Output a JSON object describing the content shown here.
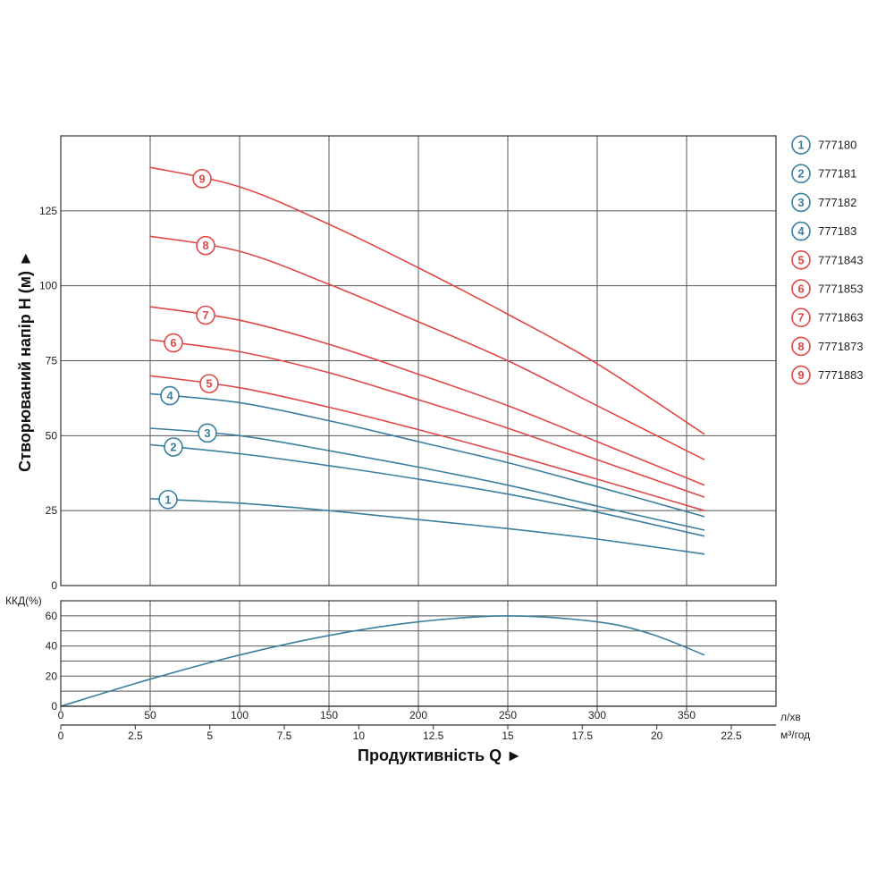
{
  "chart_data": {
    "type": "line",
    "head_chart": {
      "ylabel": "Створюваний напір H (м) ►",
      "ylim": [
        0,
        150
      ],
      "y_ticks": [
        0,
        25,
        50,
        75,
        100,
        125
      ],
      "x_range_lpm": [
        0,
        400
      ],
      "series": [
        {
          "id": "1",
          "name": "777180",
          "color": "#3a7fa0",
          "label_x": 60,
          "x": [
            50,
            100,
            150,
            200,
            250,
            300,
            360
          ],
          "y": [
            29,
            27.5,
            25,
            22,
            19,
            15.5,
            10.5
          ]
        },
        {
          "id": "2",
          "name": "777181",
          "color": "#3a7fa0",
          "label_x": 63,
          "x": [
            50,
            100,
            150,
            200,
            250,
            300,
            360
          ],
          "y": [
            47,
            44,
            40,
            35.5,
            30.5,
            24.5,
            16.5
          ]
        },
        {
          "id": "3",
          "name": "777182",
          "color": "#3a7fa0",
          "label_x": 82,
          "x": [
            50,
            100,
            150,
            200,
            250,
            300,
            360
          ],
          "y": [
            52.5,
            50,
            45,
            39.5,
            33.5,
            26.5,
            18.5
          ]
        },
        {
          "id": "4",
          "name": "777183",
          "color": "#3a7fa0",
          "label_x": 61,
          "x": [
            50,
            100,
            150,
            200,
            250,
            300,
            360
          ],
          "y": [
            64,
            61,
            55,
            48,
            41,
            33,
            23
          ]
        },
        {
          "id": "5",
          "name": "7771843",
          "color": "#e04848",
          "label_x": 83,
          "x": [
            50,
            100,
            150,
            200,
            250,
            300,
            360
          ],
          "y": [
            70,
            66,
            59.5,
            52,
            44,
            35.5,
            25
          ]
        },
        {
          "id": "6",
          "name": "7771853",
          "color": "#e04848",
          "label_x": 63,
          "x": [
            50,
            100,
            150,
            200,
            250,
            300,
            360
          ],
          "y": [
            82,
            78,
            71,
            62,
            52.5,
            42,
            29.5
          ]
        },
        {
          "id": "7",
          "name": "7771863",
          "color": "#e04848",
          "label_x": 81,
          "x": [
            50,
            100,
            150,
            200,
            250,
            300,
            360
          ],
          "y": [
            93,
            88.5,
            80.5,
            70.5,
            60,
            48,
            33.5
          ]
        },
        {
          "id": "8",
          "name": "7771873",
          "color": "#e04848",
          "label_x": 81,
          "x": [
            50,
            100,
            150,
            200,
            250,
            300,
            360
          ],
          "y": [
            116.5,
            111.5,
            100.5,
            88,
            75,
            60,
            42
          ]
        },
        {
          "id": "9",
          "name": "7771883",
          "color": "#e04848",
          "label_x": 79,
          "x": [
            50,
            100,
            150,
            200,
            250,
            300,
            360
          ],
          "y": [
            139.5,
            133,
            120.5,
            106,
            90.5,
            74,
            50.5
          ]
        }
      ]
    },
    "efficiency_chart": {
      "ylabel": "ККД(%)",
      "ylim": [
        0,
        70
      ],
      "y_ticks": [
        0,
        20,
        40,
        60
      ],
      "series": [
        {
          "name": "ККД",
          "color": "#3a7fa0",
          "x": [
            0,
            50,
            100,
            150,
            200,
            250,
            300,
            330,
            360
          ],
          "y": [
            0,
            18,
            34,
            47,
            56,
            60,
            56,
            48,
            34
          ]
        }
      ]
    },
    "x_axis_lpm": {
      "ticks": [
        0,
        50,
        100,
        150,
        200,
        250,
        300,
        350
      ],
      "unit": "л/хв"
    },
    "x_axis_m3h": {
      "ticks": [
        "0",
        "2.5",
        "5",
        "7.5",
        "10",
        "12.5",
        "15",
        "17.5",
        "20",
        "22.5"
      ],
      "values": [
        0,
        2.5,
        5,
        7.5,
        10,
        12.5,
        15,
        17.5,
        20,
        22.5
      ],
      "unit": "м³/год"
    },
    "xlabel": "Продуктивність Q ►"
  }
}
